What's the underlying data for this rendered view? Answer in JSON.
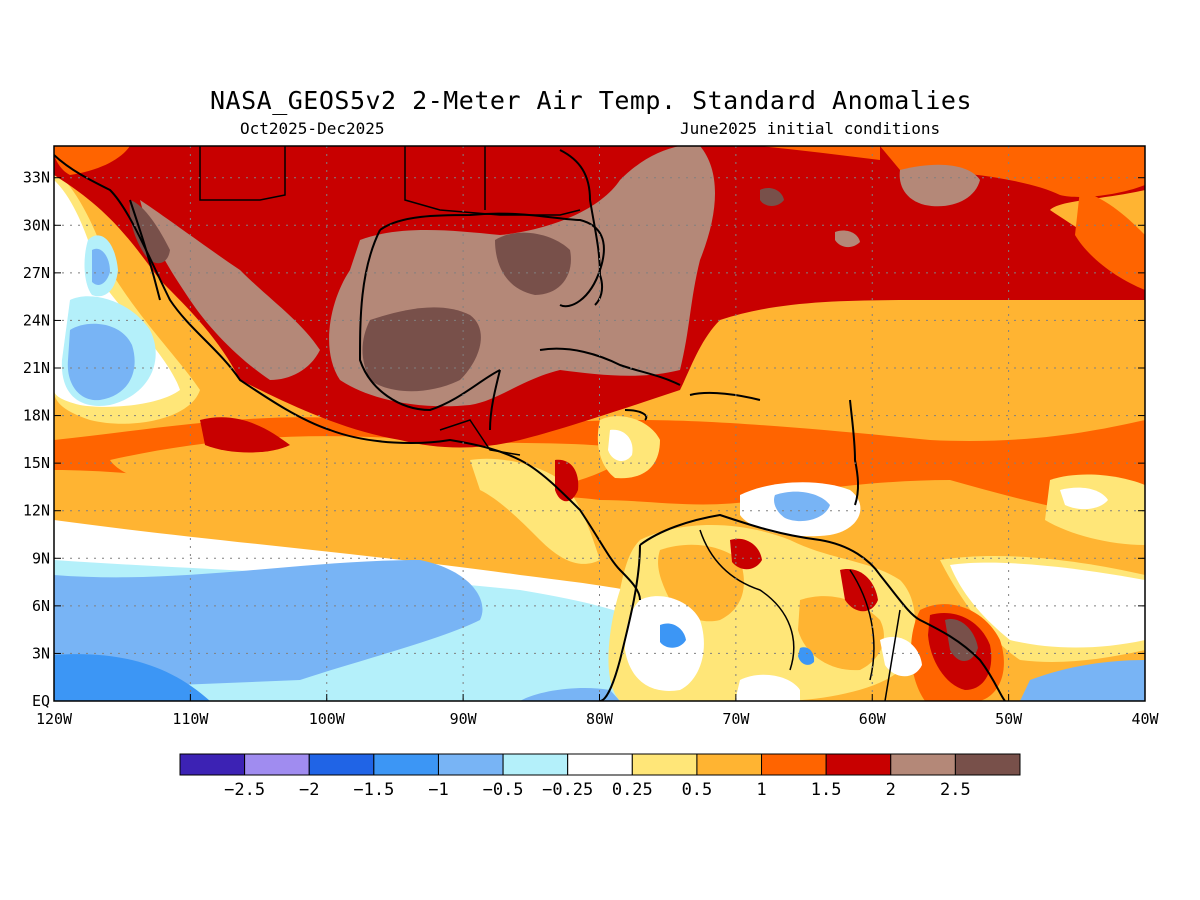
{
  "title": "NASA_GEOS5v2 2-Meter Air Temp. Standard Anomalies",
  "subtitle_left": "Oct2025-Dec2025",
  "subtitle_right": "June2025 initial conditions",
  "map": {
    "lon_range": [
      -120,
      -40
    ],
    "lat_range": [
      0,
      35
    ],
    "lat_ticks": [
      {
        "value": 0,
        "label": "EQ"
      },
      {
        "value": 3,
        "label": "3N"
      },
      {
        "value": 6,
        "label": "6N"
      },
      {
        "value": 9,
        "label": "9N"
      },
      {
        "value": 12,
        "label": "12N"
      },
      {
        "value": 15,
        "label": "15N"
      },
      {
        "value": 18,
        "label": "18N"
      },
      {
        "value": 21,
        "label": "21N"
      },
      {
        "value": 24,
        "label": "24N"
      },
      {
        "value": 27,
        "label": "27N"
      },
      {
        "value": 30,
        "label": "30N"
      },
      {
        "value": 33,
        "label": "33N"
      }
    ],
    "lon_ticks": [
      {
        "value": -120,
        "label": "120W"
      },
      {
        "value": -110,
        "label": "110W"
      },
      {
        "value": -100,
        "label": "100W"
      },
      {
        "value": -90,
        "label": "90W"
      },
      {
        "value": -80,
        "label": "80W"
      },
      {
        "value": -70,
        "label": "70W"
      },
      {
        "value": -60,
        "label": "60W"
      },
      {
        "value": -50,
        "label": "50W"
      },
      {
        "value": -40,
        "label": "40W"
      }
    ]
  },
  "colorbar": {
    "colors": [
      "#3c22b4",
      "#a08cf0",
      "#2064e6",
      "#3c96f5",
      "#78b4f5",
      "#b4f0fa",
      "#ffffff",
      "#ffe678",
      "#ffb432",
      "#ff6400",
      "#c80000",
      "#b48878",
      "#78504a"
    ],
    "labels": [
      "-2.5",
      "-2",
      "-1.5",
      "-1",
      "-0.5",
      "-0.25",
      "0.25",
      "0.5",
      "1",
      "1.5",
      "2",
      "2.5"
    ]
  }
}
